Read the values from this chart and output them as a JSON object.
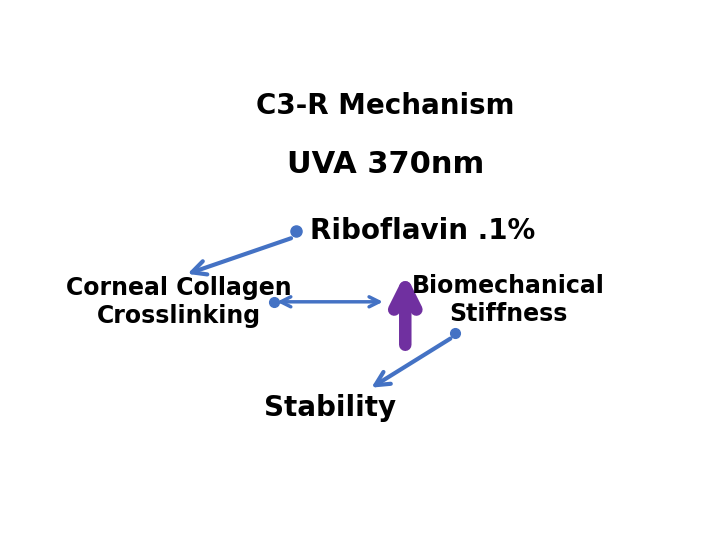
{
  "title1": "C3-R Mechanism",
  "title2": "UVA 370nm",
  "riboflavin_text": "Riboflavin .1%",
  "corneal_text": "Corneal Collagen\nCrosslinking",
  "biomechanical_text": "Biomechanical\nStiffness",
  "stability_text": "Stability",
  "bg_color": "#ffffff",
  "text_color": "#000000",
  "blue_color": "#4472C4",
  "purple_color": "#7030A0",
  "title1_fontsize": 20,
  "title2_fontsize": 22,
  "label_fontsize": 20,
  "small_label_fontsize": 17
}
